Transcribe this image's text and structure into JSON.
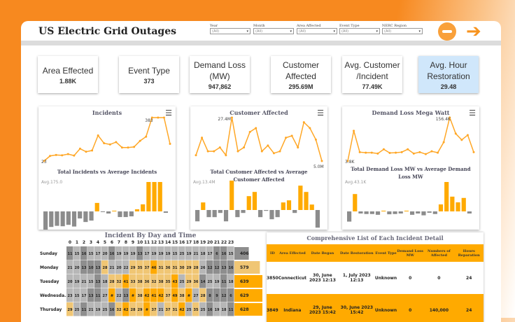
{
  "header": {
    "title": "US Electric Grid Outages",
    "filters": [
      {
        "label": "Year",
        "value": "(All)"
      },
      {
        "label": "Month",
        "value": "(All)"
      },
      {
        "label": "Area Affected",
        "value": "(All)"
      },
      {
        "label": "Event Type",
        "value": "(All)"
      },
      {
        "label": "NERC Region",
        "value": "(All)"
      }
    ],
    "icons": [
      "minus-circle-icon",
      "arrow-right-icon"
    ]
  },
  "kpis": [
    {
      "label": "Area Effected",
      "value": "1.88K"
    },
    {
      "label": "Event Type",
      "value": "373"
    },
    {
      "label": "Demand Loss (MW)",
      "value": "947,862"
    },
    {
      "label": "Customer Affected",
      "value": "295.69M"
    },
    {
      "label": "Avg. Customer /Incident",
      "value": "77.49K"
    },
    {
      "label": "Avg. Hour Restoration",
      "value": "29.48",
      "highlight": "#d0e7fb"
    }
  ],
  "colors": {
    "line": "#ffa726",
    "above": "#ffaa00",
    "below": "#8c8c8c",
    "accent": "#f7891f"
  },
  "chart_data": [
    {
      "type": "line",
      "title": "Incidents",
      "values": [
        23,
        65,
        73,
        70,
        80,
        68,
        125,
        100,
        110,
        235,
        170,
        160,
        180,
        135,
        135,
        140,
        190,
        225,
        383,
        383,
        383,
        165
      ],
      "labels": {
        "min": "23",
        "max": "383"
      },
      "bar_title": "Total Incidents vs Average Incidents",
      "avg": 175.0,
      "avg_label": "Avg.175.0"
    },
    {
      "type": "line",
      "title": "Customer Affected",
      "values": [
        8,
        17,
        10,
        10,
        12,
        8,
        27.4,
        10,
        12,
        20,
        22,
        10,
        13,
        9,
        10,
        17,
        18,
        12,
        25,
        22,
        16,
        5.0
      ],
      "labels": {
        "max": "27.4M",
        "last": "5.0M"
      },
      "bar_title": "Total Customer Affected vs Average Customer Affected",
      "avg": 13.4,
      "avg_label": "Avg.13.4M"
    },
    {
      "type": "line",
      "title": "Demand Loss Mega Watt",
      "values": [
        3.8,
        110,
        35,
        33,
        33,
        30,
        45,
        32,
        33,
        35,
        45,
        30,
        35,
        28,
        38,
        33,
        70,
        156.4,
        100,
        78,
        95,
        35
      ],
      "labels": {
        "min": "3.8K",
        "max": "156.4K"
      },
      "bar_title": "Total Demand Loss MW vs Average Demand Loss MW",
      "avg": 43.1,
      "avg_label": "Avg.43.1K"
    },
    {
      "type": "heatmap",
      "title": "Incident By Day and Time",
      "hours": [
        "0",
        "1",
        "2",
        "3",
        "4",
        "5",
        "6",
        "7",
        "8",
        "9",
        "10",
        "11",
        "12",
        "13",
        "14",
        "15",
        "16",
        "17",
        "18",
        "19",
        "20",
        "21",
        "22",
        "23"
      ],
      "rows": [
        {
          "day": "Sunday",
          "cells": [
            "11",
            "15",
            "16",
            "15",
            "17",
            "20",
            "16",
            "19",
            "19",
            "19",
            "13",
            "17",
            "19",
            "19",
            "19",
            "15",
            "25",
            "19",
            "21",
            "18",
            "17",
            "6",
            "16",
            "15"
          ],
          "total": "406"
        },
        {
          "day": "Monday",
          "cells": [
            "21",
            "20",
            "13",
            "10",
            "13",
            "28",
            "21",
            "20",
            "22",
            "29",
            "35",
            "37",
            "46",
            "31",
            "36",
            "31",
            "30",
            "29",
            "28",
            "26",
            "12",
            "12",
            "13",
            "16"
          ],
          "total": "579"
        },
        {
          "day": "Tuesday",
          "cells": [
            "20",
            "19",
            "21",
            "15",
            "13",
            "18",
            "28",
            "32",
            "41",
            "33",
            "38",
            "36",
            "32",
            "38",
            "35",
            "43",
            "25",
            "29",
            "36",
            "14",
            "25",
            "19",
            "11",
            "18"
          ],
          "total": "639"
        },
        {
          "day": "Wednesda..",
          "cells": [
            "23",
            "15",
            "17",
            "13",
            "11",
            "27",
            "#",
            "22",
            "13",
            "#",
            "38",
            "42",
            "41",
            "42",
            "37",
            "49",
            "38",
            "#",
            "27",
            "28",
            "8",
            "9",
            "12",
            "6"
          ],
          "total": "629"
        },
        {
          "day": "Thursday",
          "cells": [
            "29",
            "25",
            "11",
            "21",
            "19",
            "25",
            "16",
            "32",
            "42",
            "28",
            "29",
            "#",
            "37",
            "21",
            "37",
            "31",
            "42",
            "25",
            "35",
            "25",
            "16",
            "19",
            "18",
            "11"
          ],
          "total": "628"
        }
      ]
    }
  ],
  "table": {
    "title": "Comprehensive List of Each Incident Detail",
    "columns": [
      "ID",
      "Area Effected",
      "Date Began",
      "Date Restoration",
      "Event Type",
      "Demand Loss MW",
      "Numbers of Affected",
      "Hours Reparation"
    ],
    "rows": [
      [
        "3850",
        "Connecticut",
        "30, June 2023 12:13",
        "1, July 2023 12:13",
        "Unknown",
        "0",
        "0",
        "24"
      ],
      [
        "3849",
        "Indiana",
        "29, June 2023 15:42",
        "30, June 2023 15:42",
        "Unknown",
        "0",
        "140,000",
        "24"
      ]
    ]
  }
}
